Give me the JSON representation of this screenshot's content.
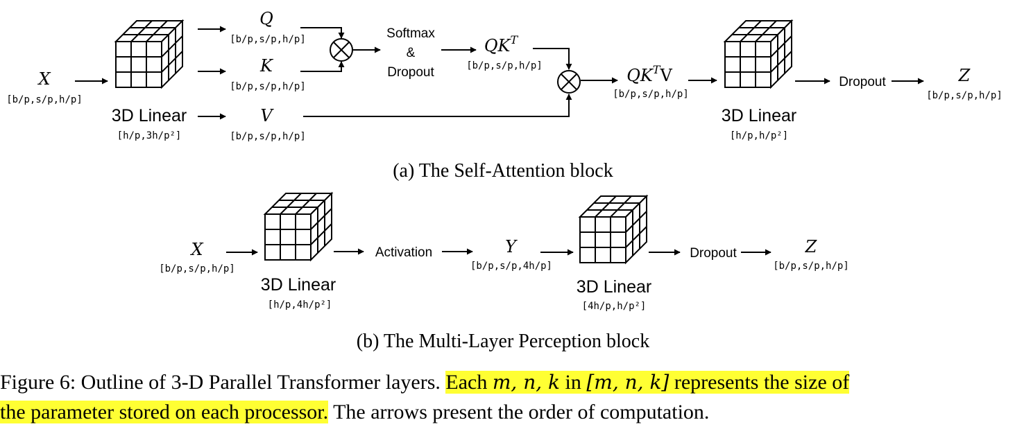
{
  "attention": {
    "input": {
      "symbol": "X",
      "dims": "[b/p,s/p,h/p]"
    },
    "linear": {
      "label": "3D Linear",
      "dims": "[h/p,3h/p²]"
    },
    "q": {
      "symbol": "Q",
      "dims": "[b/p,s/p,h/p]"
    },
    "k": {
      "symbol": "K",
      "dims": "[b/p,s/p,h/p]"
    },
    "v": {
      "symbol": "V",
      "dims": "[b/p,s/p,h/p]"
    },
    "softmax": {
      "line1": "Softmax",
      "line2": "&",
      "line3": "Dropout"
    },
    "qkt": {
      "symbol": "QK",
      "sup": "T",
      "dims": "[b/p,s/p,h/p]"
    },
    "qktv": {
      "symbol": "QK",
      "sup": "T",
      "tail": "V",
      "dims": "[b/p,s/p,h/p]"
    },
    "linear2": {
      "label": "3D Linear",
      "dims": "[h/p,h/p²]"
    },
    "dropout": "Dropout",
    "output": {
      "symbol": "Z",
      "dims": "[b/p,s/p,h/p]"
    },
    "caption": "(a) The Self-Attention block"
  },
  "mlp": {
    "input": {
      "symbol": "X",
      "dims": "[b/p,s/p,h/p]"
    },
    "linear1": {
      "label": "3D Linear",
      "dims": "[h/p,4h/p²]"
    },
    "activation": "Activation",
    "y": {
      "symbol": "Y",
      "dims": "[b/p,s/p,4h/p]"
    },
    "linear2": {
      "label": "3D Linear",
      "dims": "[4h/p,h/p²]"
    },
    "dropout": "Dropout",
    "output": {
      "symbol": "Z",
      "dims": "[b/p,s/p,h/p]"
    },
    "caption": "(b) The Multi-Layer Perception block"
  },
  "figure_caption": {
    "prefix": "Figure 6: Outline of 3-D Parallel Transformer layers. ",
    "highlight_part1": "Each ",
    "highlight_math1": "m, n, k",
    "highlight_part2": " in ",
    "highlight_math2": "[m, n, k]",
    "highlight_part3": " represents the size of",
    "highlight_line2": "the parameter stored on each processor.",
    "suffix": " The arrows present the order of computation.",
    "highlight_color": "#ffff33"
  }
}
